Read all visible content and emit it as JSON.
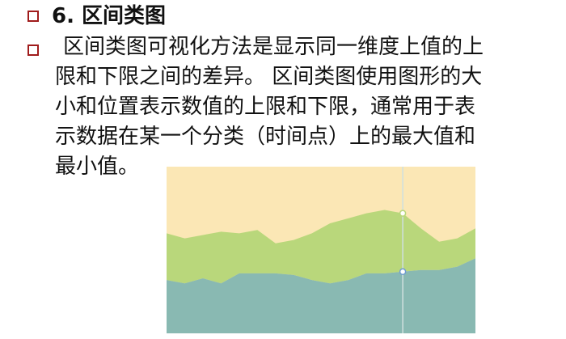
{
  "heading": "6. 区间类图",
  "body_lines": [
    "区间类图可视化方法是显示同一维度上值的上",
    "限和下限之间的差异。 区间类图使用图形的大",
    "小和位置表示数值的上限和下限，通常用于表",
    "示数据在某一个分类（时间点）上的最大值和",
    "最小值。"
  ],
  "colors": {
    "bullet": "#a01c1c",
    "band_top": "#fbe7b5",
    "band_middle": "#b9d77b",
    "band_bottom": "#89b9b2",
    "marker_line": "#cfe0df",
    "upper_marker": "#b9d77b",
    "lower_marker": "#6f9bd1"
  },
  "chart_data": {
    "type": "area",
    "x": [
      0,
      1,
      2,
      3,
      4,
      5,
      6,
      7,
      8,
      9,
      10,
      11,
      12,
      13,
      14,
      15,
      16,
      17
    ],
    "upper": [
      60,
      57,
      59,
      61,
      60,
      62,
      54,
      56,
      60,
      66,
      69,
      72,
      74,
      72,
      63,
      55,
      57,
      63
    ],
    "lower": [
      32,
      30,
      33,
      30,
      36,
      36,
      36,
      35,
      32,
      30,
      32,
      36,
      36,
      37,
      38,
      38,
      40,
      45
    ],
    "ylim": [
      0,
      100
    ],
    "highlight_index": 13
  }
}
